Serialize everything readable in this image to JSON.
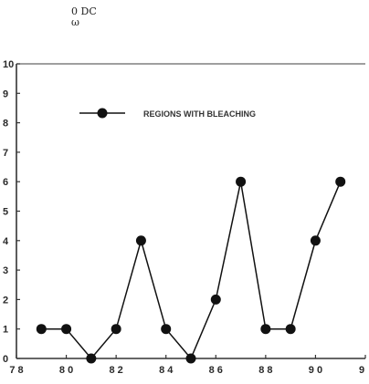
{
  "header": {
    "mark_line1": "0 DC",
    "mark_line2": "ω"
  },
  "chart_data": {
    "type": "line",
    "title": "",
    "xlabel": "",
    "ylabel": "",
    "xlim": [
      78,
      92
    ],
    "ylim": [
      0,
      10
    ],
    "x_ticks": [
      78,
      80,
      82,
      84,
      86,
      88,
      90,
      92
    ],
    "x_tick_labels": [
      "7 8",
      "8 0",
      "8 2",
      "8 4",
      "8 6",
      "8 8",
      "9 0",
      "9"
    ],
    "y_ticks": [
      0,
      1,
      2,
      3,
      4,
      5,
      6,
      7,
      8,
      9,
      10
    ],
    "grid": false,
    "legend_position": "top-left",
    "series": [
      {
        "name": "REGIONS WITH BLEACHING",
        "color": "#111111",
        "marker": "filled-circle",
        "x": [
          79,
          80,
          81,
          82,
          83,
          84,
          85,
          86,
          87,
          88,
          89,
          90,
          91
        ],
        "y": [
          1,
          1,
          0,
          1,
          4,
          1,
          0,
          2,
          6,
          1,
          1,
          4,
          6
        ]
      }
    ]
  }
}
